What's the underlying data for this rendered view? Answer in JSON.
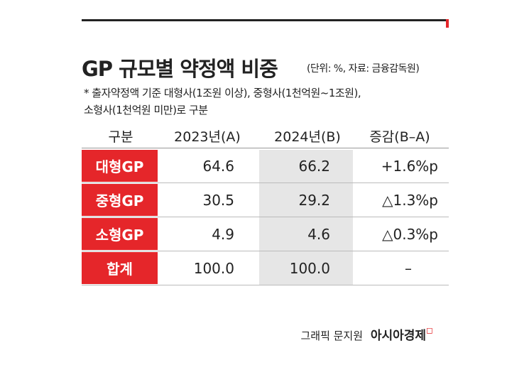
{
  "header": {
    "title": "GP 규모별 약정액 비중",
    "unit": "(단위: %, 자료: 금융감독원)",
    "notes": [
      "* 출자약정액 기준 대형사(1조원 이상), 중형사(1천억원~1조원),",
      "소형사(1천억원 미만)로 구분"
    ]
  },
  "table": {
    "columns": [
      "구분",
      "2023년(A)",
      "2024년(B)",
      "증감(B–A)"
    ],
    "rows": [
      [
        "대형GP",
        "64.6",
        "66.2",
        "+1.6%p"
      ],
      [
        "중형GP",
        "30.5",
        "29.2",
        "△1.3%p"
      ],
      [
        "소형GP",
        "4.9",
        "4.6",
        "△0.3%p"
      ],
      [
        "합계",
        "100.0",
        "100.0",
        "–"
      ]
    ]
  },
  "footer": {
    "credit": "그래픽 문지원",
    "brand": "아시아경제"
  }
}
